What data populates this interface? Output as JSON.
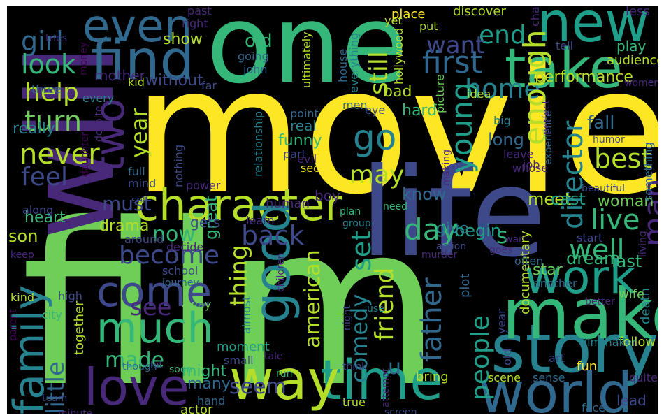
{
  "palette": {
    "yellow": "#fde725",
    "lime": "#b5de2b",
    "green": "#6ece58",
    "mint": "#35b779",
    "teal": "#1f9e89",
    "cyan": "#26828e",
    "blue": "#31688e",
    "indigo": "#3e4989",
    "violet": "#482878",
    "purple": "#440154"
  },
  "words": [
    {
      "id": "movie",
      "text": "movie"
    },
    {
      "id": "film",
      "text": "film"
    },
    {
      "id": "one",
      "text": "one"
    },
    {
      "id": "life",
      "text": "life"
    },
    {
      "id": "will",
      "text": "will"
    },
    {
      "id": "story",
      "text": "story"
    },
    {
      "id": "make",
      "text": "make"
    },
    {
      "id": "time",
      "text": "time"
    },
    {
      "id": "way",
      "text": "way"
    },
    {
      "id": "world",
      "text": "world"
    },
    {
      "id": "new",
      "text": "new"
    },
    {
      "id": "take",
      "text": "take"
    },
    {
      "id": "find",
      "text": "find"
    },
    {
      "id": "even",
      "text": "even"
    },
    {
      "id": "character",
      "text": "character"
    },
    {
      "id": "love",
      "text": "love"
    },
    {
      "id": "much",
      "text": "much"
    },
    {
      "id": "come",
      "text": "come"
    },
    {
      "id": "work",
      "text": "work"
    },
    {
      "id": "good",
      "text": "good"
    },
    {
      "id": "family",
      "text": "family"
    },
    {
      "id": "two",
      "text": "two"
    },
    {
      "id": "girl",
      "text": "girl"
    },
    {
      "id": "look",
      "text": "look"
    },
    {
      "id": "help",
      "text": "help"
    },
    {
      "id": "turn",
      "text": "turn"
    },
    {
      "id": "never",
      "text": "never"
    },
    {
      "id": "feel",
      "text": "feel"
    },
    {
      "id": "become",
      "text": "become"
    },
    {
      "id": "back",
      "text": "back"
    },
    {
      "id": "first",
      "text": "first"
    },
    {
      "id": "end",
      "text": "end"
    },
    {
      "id": "want",
      "text": "want"
    },
    {
      "id": "home",
      "text": "home"
    },
    {
      "id": "enough",
      "text": "enough"
    },
    {
      "id": "young",
      "text": "young"
    },
    {
      "id": "go",
      "text": "go"
    },
    {
      "id": "may",
      "text": "may"
    },
    {
      "id": "live",
      "text": "live"
    },
    {
      "id": "well",
      "text": "well"
    },
    {
      "id": "man",
      "text": "man"
    },
    {
      "id": "best",
      "text": "best"
    },
    {
      "id": "director",
      "text": "director"
    },
    {
      "id": "day",
      "text": "day"
    },
    {
      "id": "set",
      "text": "set"
    },
    {
      "id": "still",
      "text": "still"
    },
    {
      "id": "friend",
      "text": "friend"
    },
    {
      "id": "father",
      "text": "father"
    },
    {
      "id": "people",
      "text": "people"
    },
    {
      "id": "american",
      "text": "american"
    },
    {
      "id": "comedy",
      "text": "comedy"
    },
    {
      "id": "thing",
      "text": "thing"
    },
    {
      "id": "see",
      "text": "see"
    },
    {
      "id": "must",
      "text": "must"
    },
    {
      "id": "now",
      "text": "now"
    },
    {
      "id": "seem",
      "text": "seem"
    },
    {
      "id": "made",
      "text": "made"
    },
    {
      "id": "little",
      "text": "little"
    },
    {
      "id": "year",
      "text": "year"
    },
    {
      "id": "old",
      "text": "old"
    },
    {
      "id": "show",
      "text": "show"
    },
    {
      "id": "mother",
      "text": "mother"
    },
    {
      "id": "performance",
      "text": "performance"
    },
    {
      "id": "play",
      "text": "play"
    },
    {
      "id": "audience",
      "text": "audience"
    },
    {
      "id": "discover",
      "text": "discover"
    },
    {
      "id": "place",
      "text": "place"
    },
    {
      "id": "less",
      "text": "less"
    },
    {
      "id": "drama",
      "text": "drama"
    },
    {
      "id": "heart",
      "text": "heart"
    },
    {
      "id": "son",
      "text": "son"
    },
    {
      "id": "really",
      "text": "really"
    },
    {
      "id": "s",
      "text": "s"
    },
    {
      "id": "u",
      "text": "u"
    },
    {
      "id": "meet",
      "text": "meet"
    },
    {
      "id": "cast",
      "text": "cast"
    },
    {
      "id": "woman",
      "text": "woman"
    },
    {
      "id": "dream",
      "text": "dream"
    },
    {
      "id": "star",
      "text": "star"
    },
    {
      "id": "last",
      "text": "last"
    },
    {
      "id": "fall",
      "text": "fall"
    },
    {
      "id": "begin",
      "text": "begin"
    },
    {
      "id": "give",
      "text": "give"
    },
    {
      "id": "know",
      "text": "know"
    },
    {
      "id": "hard",
      "text": "hard"
    },
    {
      "id": "bad",
      "text": "bad"
    },
    {
      "id": "funny",
      "text": "funny"
    },
    {
      "id": "real",
      "text": "real"
    },
    {
      "id": "long",
      "text": "long"
    },
    {
      "id": "great",
      "text": "great"
    },
    {
      "id": "might",
      "text": "might"
    },
    {
      "id": "many",
      "text": "many"
    },
    {
      "id": "gets",
      "text": "gets"
    },
    {
      "id": "boy",
      "text": "boy"
    },
    {
      "id": "without",
      "text": "without"
    },
    {
      "id": "power",
      "text": "power"
    },
    {
      "id": "human",
      "text": "human"
    },
    {
      "id": "put",
      "text": "put"
    },
    {
      "id": "idea",
      "text": "idea"
    },
    {
      "id": "picture",
      "text": "picture"
    },
    {
      "id": "point",
      "text": "point"
    },
    {
      "id": "big",
      "text": "big"
    },
    {
      "id": "documentary",
      "text": "documentary"
    },
    {
      "id": "death",
      "text": "death"
    },
    {
      "id": "wife",
      "text": "wife"
    },
    {
      "id": "follow",
      "text": "follow"
    },
    {
      "id": "lead",
      "text": "lead"
    },
    {
      "id": "scene",
      "text": "scene"
    },
    {
      "id": "fun",
      "text": "fun"
    },
    {
      "id": "bring",
      "text": "bring"
    },
    {
      "id": "true",
      "text": "true"
    },
    {
      "id": "actor",
      "text": "actor"
    },
    {
      "id": "hand",
      "text": "hand"
    },
    {
      "id": "secret",
      "text": "secret"
    },
    {
      "id": "kid",
      "text": "kid"
    },
    {
      "id": "john",
      "text": "john"
    },
    {
      "id": "going",
      "text": "going"
    },
    {
      "id": "money",
      "text": "money"
    },
    {
      "id": "past",
      "text": "past"
    },
    {
      "id": "yet",
      "text": "yet"
    },
    {
      "id": "right",
      "text": "right"
    },
    {
      "id": "tries",
      "text": "tries"
    },
    {
      "id": "three",
      "text": "three"
    },
    {
      "id": "every",
      "text": "every"
    },
    {
      "id": "far",
      "text": "far"
    },
    {
      "id": "tell",
      "text": "tell"
    },
    {
      "id": "change",
      "text": "change"
    },
    {
      "id": "women",
      "text": "women"
    },
    {
      "id": "ultimately",
      "text": "ultimately"
    },
    {
      "id": "house",
      "text": "house"
    },
    {
      "id": "hollywood",
      "text": "hollywood"
    },
    {
      "id": "everything",
      "text": "everything"
    },
    {
      "id": "men",
      "text": "men"
    },
    {
      "id": "eye",
      "text": "eye"
    },
    {
      "id": "despite",
      "text": "despite"
    },
    {
      "id": "daughter",
      "text": "daughter"
    },
    {
      "id": "full",
      "text": "full"
    },
    {
      "id": "mind",
      "text": "mind"
    },
    {
      "id": "self",
      "text": "self"
    },
    {
      "id": "nothing",
      "text": "nothing"
    },
    {
      "id": "relationship",
      "text": "relationship"
    },
    {
      "id": "part",
      "text": "part"
    },
    {
      "id": "evil",
      "text": "evil"
    },
    {
      "id": "making",
      "text": "making"
    },
    {
      "id": "leave",
      "text": "leave"
    },
    {
      "id": "whose",
      "text": "whose"
    },
    {
      "id": "experience",
      "text": "experience"
    },
    {
      "id": "perfect",
      "text": "perfect"
    },
    {
      "id": "humor",
      "text": "humor"
    },
    {
      "id": "something",
      "text": "something"
    },
    {
      "id": "beautiful",
      "text": "beautiful"
    },
    {
      "id": "start",
      "text": "start"
    },
    {
      "id": "war",
      "text": "war"
    },
    {
      "id": "goes",
      "text": "goes"
    },
    {
      "id": "living",
      "text": "living"
    },
    {
      "id": "another",
      "text": "another"
    },
    {
      "id": "often",
      "text": "often"
    },
    {
      "id": "action",
      "text": "action"
    },
    {
      "id": "murder",
      "text": "murder"
    },
    {
      "id": "need",
      "text": "need"
    },
    {
      "id": "plan",
      "text": "plan"
    },
    {
      "id": "group",
      "text": "group"
    },
    {
      "id": "learn",
      "text": "learn"
    },
    {
      "id": "decide",
      "text": "decide"
    },
    {
      "id": "around",
      "text": "around"
    },
    {
      "id": "along",
      "text": "along"
    },
    {
      "id": "keep",
      "text": "keep"
    },
    {
      "id": "school",
      "text": "school"
    },
    {
      "id": "journey",
      "text": "journey"
    },
    {
      "id": "high",
      "text": "high"
    },
    {
      "id": "kind",
      "text": "kind"
    },
    {
      "id": "city",
      "text": "city"
    },
    {
      "id": "away",
      "text": "away"
    },
    {
      "id": "almost",
      "text": "almost"
    },
    {
      "id": "small",
      "text": "small"
    },
    {
      "id": "moment",
      "text": "moment"
    },
    {
      "id": "together",
      "text": "together"
    },
    {
      "id": "though",
      "text": "though"
    },
    {
      "id": "lot",
      "text": "lot"
    },
    {
      "id": "soon",
      "text": "soon"
    },
    {
      "id": "run",
      "text": "run"
    },
    {
      "id": "children",
      "text": "children"
    },
    {
      "id": "night",
      "text": "night"
    },
    {
      "id": "use",
      "text": "use"
    },
    {
      "id": "plot",
      "text": "plot"
    },
    {
      "id": "better",
      "text": "better"
    },
    {
      "id": "filmmaker",
      "text": "filmmaker"
    },
    {
      "id": "art",
      "text": "art"
    },
    {
      "id": "sense",
      "text": "sense"
    },
    {
      "id": "quite",
      "text": "quite"
    },
    {
      "id": "face",
      "text": "face"
    },
    {
      "id": "tale",
      "text": "tale"
    },
    {
      "id": "think",
      "text": "think"
    },
    {
      "id": "attempt",
      "text": "attempt"
    },
    {
      "id": "screen",
      "text": "screen"
    },
    {
      "id": "parent",
      "text": "parent"
    },
    {
      "id": "team",
      "text": "team"
    },
    {
      "id": "minute",
      "text": "minute"
    },
    {
      "id": "job",
      "text": "job"
    },
    {
      "id": "year2",
      "text": "year"
    },
    {
      "id": "old2",
      "text": "old"
    }
  ]
}
